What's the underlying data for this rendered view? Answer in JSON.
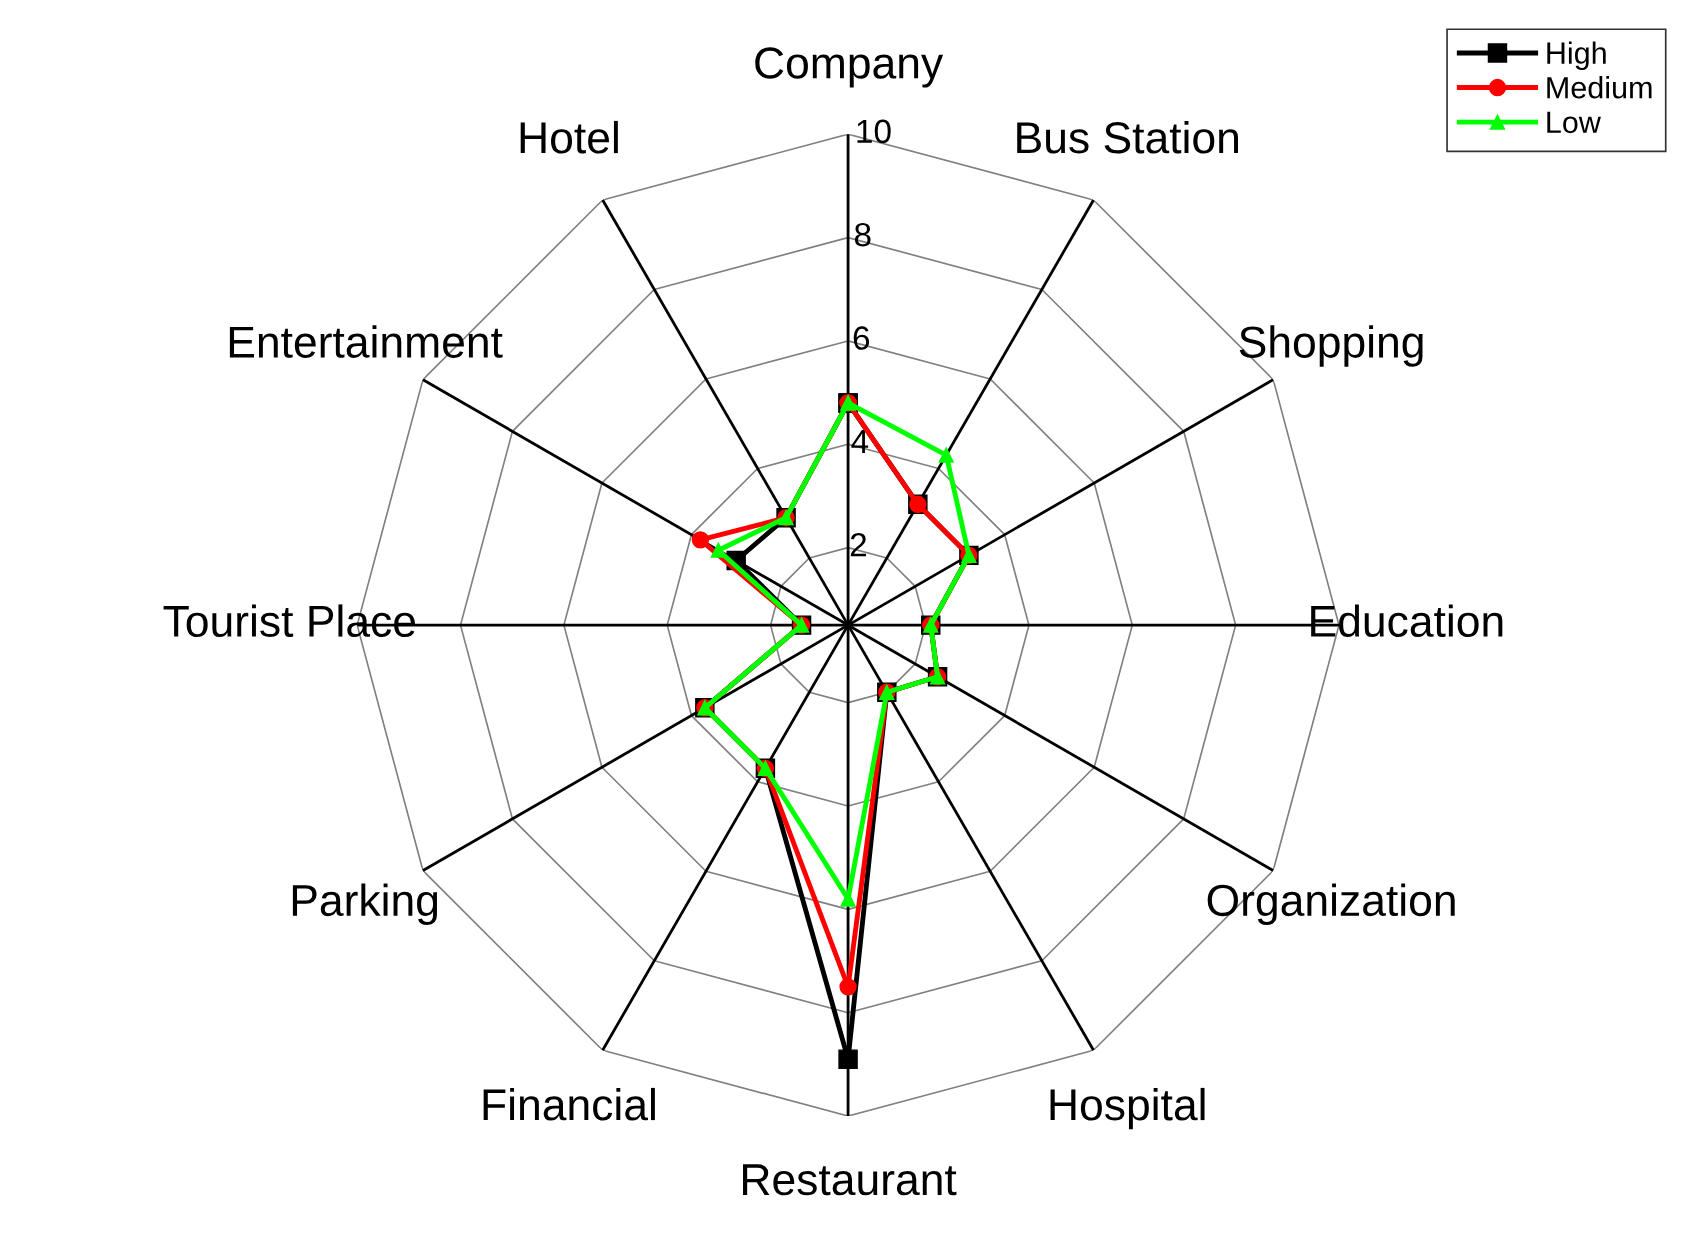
{
  "chart_data": {
    "type": "radar",
    "categories": [
      "Company",
      "Bus Station",
      "Shopping",
      "Education",
      "Organization",
      "Hospital",
      "Restaurant",
      "Financial",
      "Parking",
      "Tourist Place",
      "Entertainment",
      "Hotel"
    ],
    "series": [
      {
        "name": "High",
        "color": "#000000",
        "marker": "square",
        "values": [
          4.8,
          3.2,
          3.2,
          2.1,
          2.5,
          2.0,
          8.9,
          3.7,
          3.7,
          1.4,
          3.0,
          2.9
        ]
      },
      {
        "name": "Medium",
        "color": "#ff0000",
        "marker": "circle",
        "values": [
          4.8,
          3.2,
          3.2,
          2.1,
          2.5,
          2.0,
          7.5,
          3.7,
          3.7,
          1.4,
          3.8,
          2.9
        ]
      },
      {
        "name": "Low",
        "color": "#00ff00",
        "marker": "triangle",
        "values": [
          4.8,
          4.3,
          3.2,
          2.1,
          2.5,
          2.0,
          5.8,
          3.7,
          3.7,
          1.4,
          3.4,
          2.9
        ]
      }
    ],
    "ylim": [
      0.5,
      10
    ],
    "yticks": [
      2,
      4,
      6,
      8,
      10
    ],
    "grid": true,
    "legend": "top right",
    "line_style": "solid"
  }
}
